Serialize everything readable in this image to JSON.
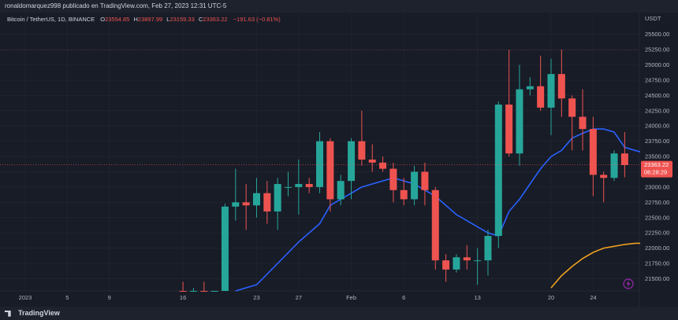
{
  "header": {
    "publisher": "ronaldomarquez998 publicado en TradingView.com, Feb 27, 2023 12:31 UTC-5"
  },
  "footer": {
    "brand": "TradingView"
  },
  "legend": {
    "symbol": "Bitcoin / TetherUS, 1D, BINANCE",
    "o_label": "O",
    "o_value": "23554.85",
    "h_label": "H",
    "h_value": "23897.99",
    "l_label": "L",
    "l_value": "23159.33",
    "c_label": "C",
    "c_value": "23363.22",
    "change": "−191.63 (−0.81%)"
  },
  "price_tag": {
    "price": "23363.22",
    "countdown": "06:28:29"
  },
  "colors": {
    "up": "#26a69a",
    "down": "#ef5350",
    "ma_fast": "#2962ff",
    "ma_slow": "#f0a020",
    "background": "#181c27"
  },
  "chart_data": {
    "type": "candlestick",
    "currency_label": "USDT",
    "ylim": [
      21300,
      25650
    ],
    "y_ticks": [
      "25500.00",
      "25250.00",
      "25000.00",
      "24750.00",
      "24500.00",
      "24250.00",
      "24000.00",
      "23750.00",
      "23500.00",
      "23250.00",
      "23000.00",
      "22750.00",
      "22500.00",
      "22250.00",
      "22000.00",
      "21750.00",
      "21500.00"
    ],
    "x_ticks": [
      {
        "label": "2023",
        "date": "2023-01-01"
      },
      {
        "label": "5",
        "date": "2023-01-05"
      },
      {
        "label": "9",
        "date": "2023-01-09"
      },
      {
        "label": "16",
        "date": "2023-01-16"
      },
      {
        "label": "23",
        "date": "2023-01-23"
      },
      {
        "label": "27",
        "date": "2023-01-27"
      },
      {
        "label": "Feb",
        "date": "2023-02-01"
      },
      {
        "label": "6",
        "date": "2023-02-06"
      },
      {
        "label": "13",
        "date": "2023-02-13"
      },
      {
        "label": "20",
        "date": "2023-02-20"
      },
      {
        "label": "24",
        "date": "2023-02-24"
      }
    ],
    "candles": [
      {
        "date": "2023-01-16",
        "o": 21200,
        "h": 21450,
        "l": 21100,
        "c": 21150
      },
      {
        "date": "2023-01-17",
        "o": 21150,
        "h": 21350,
        "l": 21050,
        "c": 21180
      },
      {
        "date": "2023-01-18",
        "o": 21180,
        "h": 21450,
        "l": 20500,
        "c": 20650
      },
      {
        "date": "2023-01-19",
        "o": 20650,
        "h": 21150,
        "l": 20600,
        "c": 21080
      },
      {
        "date": "2023-01-20",
        "o": 21080,
        "h": 22730,
        "l": 21000,
        "c": 22680
      },
      {
        "date": "2023-01-21",
        "o": 22680,
        "h": 23300,
        "l": 22450,
        "c": 22750
      },
      {
        "date": "2023-01-22",
        "o": 22750,
        "h": 23050,
        "l": 22300,
        "c": 22700
      },
      {
        "date": "2023-01-23",
        "o": 22700,
        "h": 23150,
        "l": 22500,
        "c": 22900
      },
      {
        "date": "2023-01-24",
        "o": 22900,
        "h": 23100,
        "l": 22400,
        "c": 22600
      },
      {
        "date": "2023-01-25",
        "o": 22600,
        "h": 23150,
        "l": 22300,
        "c": 23050
      },
      {
        "date": "2023-01-26",
        "o": 23000,
        "h": 23250,
        "l": 22850,
        "c": 23000
      },
      {
        "date": "2023-01-27",
        "o": 23000,
        "h": 23450,
        "l": 22550,
        "c": 23050
      },
      {
        "date": "2023-01-28",
        "o": 23050,
        "h": 23150,
        "l": 22900,
        "c": 23000
      },
      {
        "date": "2023-01-29",
        "o": 23000,
        "h": 23900,
        "l": 22900,
        "c": 23750
      },
      {
        "date": "2023-01-30",
        "o": 23750,
        "h": 23800,
        "l": 22600,
        "c": 22800
      },
      {
        "date": "2023-01-31",
        "o": 22800,
        "h": 23200,
        "l": 22700,
        "c": 23100
      },
      {
        "date": "2023-02-01",
        "o": 23100,
        "h": 23800,
        "l": 22800,
        "c": 23750
      },
      {
        "date": "2023-02-02",
        "o": 23750,
        "h": 24250,
        "l": 23350,
        "c": 23450
      },
      {
        "date": "2023-02-03",
        "o": 23450,
        "h": 23700,
        "l": 23250,
        "c": 23400
      },
      {
        "date": "2023-02-04",
        "o": 23400,
        "h": 23500,
        "l": 23250,
        "c": 23300
      },
      {
        "date": "2023-02-05",
        "o": 23300,
        "h": 23400,
        "l": 22750,
        "c": 22950
      },
      {
        "date": "2023-02-06",
        "o": 22950,
        "h": 23150,
        "l": 22700,
        "c": 22800
      },
      {
        "date": "2023-02-07",
        "o": 22800,
        "h": 23350,
        "l": 22700,
        "c": 23250
      },
      {
        "date": "2023-02-08",
        "o": 23250,
        "h": 23400,
        "l": 22700,
        "c": 22950
      },
      {
        "date": "2023-02-09",
        "o": 22950,
        "h": 23000,
        "l": 21650,
        "c": 21800
      },
      {
        "date": "2023-02-10",
        "o": 21800,
        "h": 21900,
        "l": 21450,
        "c": 21650
      },
      {
        "date": "2023-02-11",
        "o": 21650,
        "h": 21900,
        "l": 21600,
        "c": 21850
      },
      {
        "date": "2023-02-12",
        "o": 21850,
        "h": 22050,
        "l": 21650,
        "c": 21800
      },
      {
        "date": "2023-02-13",
        "o": 21800,
        "h": 22000,
        "l": 21400,
        "c": 21800
      },
      {
        "date": "2023-02-14",
        "o": 21800,
        "h": 22300,
        "l": 21550,
        "c": 22200
      },
      {
        "date": "2023-02-15",
        "o": 22200,
        "h": 24400,
        "l": 22000,
        "c": 24350
      },
      {
        "date": "2023-02-16",
        "o": 24350,
        "h": 25250,
        "l": 23500,
        "c": 23550
      },
      {
        "date": "2023-02-17",
        "o": 23550,
        "h": 25000,
        "l": 23350,
        "c": 24600
      },
      {
        "date": "2023-02-18",
        "o": 24600,
        "h": 24800,
        "l": 24500,
        "c": 24650
      },
      {
        "date": "2023-02-19",
        "o": 24650,
        "h": 25150,
        "l": 24250,
        "c": 24300
      },
      {
        "date": "2023-02-20",
        "o": 24300,
        "h": 25100,
        "l": 23850,
        "c": 24850
      },
      {
        "date": "2023-02-21",
        "o": 24850,
        "h": 25250,
        "l": 24150,
        "c": 24450
      },
      {
        "date": "2023-02-22",
        "o": 24450,
        "h": 24500,
        "l": 23600,
        "c": 24150
      },
      {
        "date": "2023-02-23",
        "o": 24150,
        "h": 24600,
        "l": 23600,
        "c": 23950
      },
      {
        "date": "2023-02-24",
        "o": 23950,
        "h": 24150,
        "l": 22850,
        "c": 23200
      },
      {
        "date": "2023-02-25",
        "o": 23200,
        "h": 23250,
        "l": 22750,
        "c": 23150
      },
      {
        "date": "2023-02-26",
        "o": 23150,
        "h": 23600,
        "l": 23100,
        "c": 23550
      },
      {
        "date": "2023-02-27",
        "o": 23550,
        "h": 23900,
        "l": 23160,
        "c": 23360
      }
    ],
    "ma_fast": [
      [
        20,
        20950
      ],
      [
        22,
        21400
      ],
      [
        24,
        21750
      ],
      [
        26,
        22100
      ],
      [
        28,
        22400
      ],
      [
        29,
        22700
      ],
      [
        32,
        23000
      ],
      [
        34,
        23100
      ],
      [
        35,
        23150
      ],
      [
        36,
        23100
      ],
      [
        37,
        23050
      ],
      [
        39,
        22850
      ],
      [
        41,
        22550
      ],
      [
        43,
        22350
      ],
      [
        44,
        22250
      ],
      [
        45,
        22200
      ],
      [
        46,
        22600
      ],
      [
        47,
        22800
      ],
      [
        48,
        23050
      ],
      [
        49,
        23300
      ],
      [
        50,
        23500
      ],
      [
        51,
        23600
      ],
      [
        52,
        23800
      ],
      [
        53,
        23880
      ],
      [
        54,
        23950
      ],
      [
        55,
        23950
      ],
      [
        56,
        23900
      ],
      [
        57,
        23650
      ],
      [
        58,
        23600
      ],
      [
        59,
        23550
      ],
      [
        60,
        23500
      ]
    ],
    "ma_slow": [
      [
        50,
        21350
      ],
      [
        51,
        21550
      ],
      [
        52,
        21700
      ],
      [
        53,
        21830
      ],
      [
        54,
        21930
      ],
      [
        55,
        22000
      ],
      [
        56,
        22030
      ],
      [
        57,
        22060
      ],
      [
        58,
        22080
      ],
      [
        59,
        22080
      ],
      [
        60,
        22080
      ]
    ]
  }
}
